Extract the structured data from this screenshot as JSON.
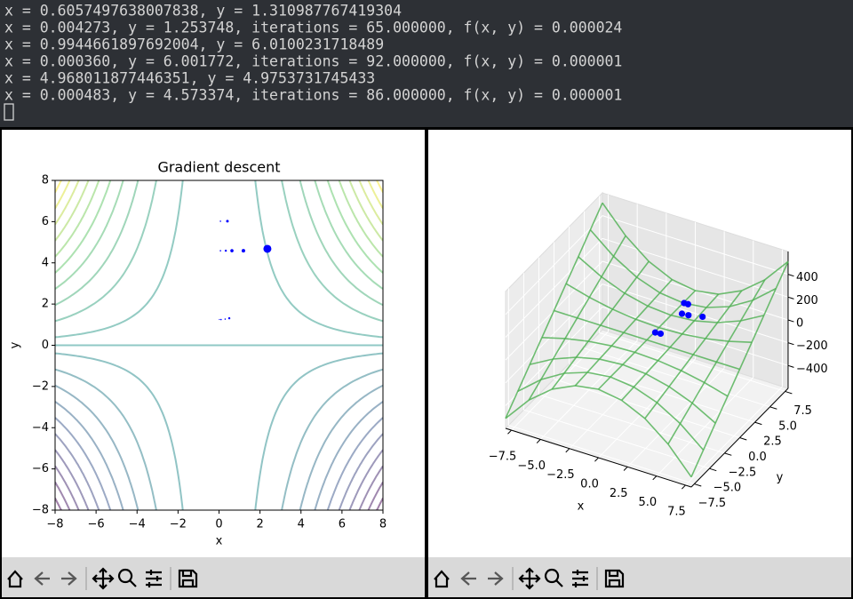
{
  "terminal": {
    "lines": [
      "x = 0.6057497638007838, y = 1.310987767419304",
      "x = 0.004273, y = 1.253748, iterations = 65.000000, f(x, y) = 0.000024",
      "x = 0.9944661897692004, y = 6.0100231718489",
      "x = 0.000360, y = 6.001772, iterations = 92.000000, f(x, y) = 0.000001",
      "x = 4.968011877446351, y = 4.9753731745433",
      "x = 0.000483, y = 4.573374, iterations = 86.000000, f(x, y) = 0.000001"
    ]
  },
  "chart_data": [
    {
      "type": "contour",
      "title": "Gradient descent",
      "xlabel": "x",
      "ylabel": "y",
      "xlim": [
        -8,
        8
      ],
      "ylim": [
        -8,
        8
      ],
      "xticks": [
        {
          "value": -8,
          "label": "−8"
        },
        {
          "value": -6,
          "label": "−6"
        },
        {
          "value": -4,
          "label": "−4"
        },
        {
          "value": -2,
          "label": "−2"
        },
        0,
        2,
        4,
        6,
        8
      ],
      "yticks": [
        {
          "value": -8,
          "label": "−8"
        },
        {
          "value": -6,
          "label": "−6"
        },
        {
          "value": -4,
          "label": "−4"
        },
        {
          "value": -2,
          "label": "−2"
        },
        0,
        2,
        4,
        6,
        8
      ],
      "levels": [
        -475,
        -425,
        -375,
        -325,
        -275,
        -225,
        -175,
        -125,
        -75,
        -25,
        0,
        25,
        75,
        125,
        175,
        225,
        275,
        325,
        375,
        425,
        475
      ],
      "cmap": "viridis",
      "points": {
        "x": [
          2.36,
          1.19,
          0.63,
          0.33,
          0.07,
          0.41,
          0.07,
          0.5,
          0.3,
          0.1,
          0.02
        ],
        "y": [
          4.68,
          4.59,
          4.59,
          4.59,
          4.59,
          6.02,
          6.02,
          1.31,
          1.27,
          1.25,
          1.25
        ],
        "sizes": [
          4.5,
          2,
          1.8,
          1.2,
          0.8,
          1.5,
          0.8,
          1.2,
          0.8,
          0.8,
          0.6
        ],
        "color": "#0000ff"
      }
    },
    {
      "type": "surface3d",
      "xlabel": "x",
      "ylabel": "y",
      "xlim": [
        -8,
        8
      ],
      "ylim": [
        -8,
        8
      ],
      "zlim": [
        -600,
        600
      ],
      "xticks": [
        {
          "value": -7.5,
          "label": "−7.5"
        },
        {
          "value": -5,
          "label": "−5.0"
        },
        {
          "value": -2.5,
          "label": "−2.5"
        },
        {
          "value": 0,
          "label": "0.0"
        },
        2.5,
        {
          "value": 5,
          "label": "5.0"
        },
        7.5
      ],
      "yticks": [
        {
          "value": -7.5,
          "label": "−7.5"
        },
        {
          "value": -5,
          "label": "−5.0"
        },
        {
          "value": -2.5,
          "label": "−2.5"
        },
        {
          "value": 0,
          "label": "0.0"
        },
        2.5,
        {
          "value": 5,
          "label": "5.0"
        },
        7.5
      ],
      "zticks": [
        {
          "value": -400,
          "label": "−400"
        },
        {
          "value": -200,
          "label": "−200"
        },
        0,
        200,
        400
      ],
      "grid": [
        -8,
        -6,
        -4,
        -2,
        0,
        2,
        4,
        6,
        8
      ],
      "color": "#4caf50",
      "points": {
        "x": [
          2.36,
          1.19,
          0.63,
          0.07,
          0.41,
          0.5,
          0.07
        ],
        "y": [
          4.68,
          4.59,
          4.59,
          6.02,
          6.02,
          1.31,
          1.25
        ],
        "z": [
          26,
          6.5,
          1.8,
          0,
          1,
          0.3,
          0
        ],
        "color": "#0000ff"
      }
    }
  ]
}
